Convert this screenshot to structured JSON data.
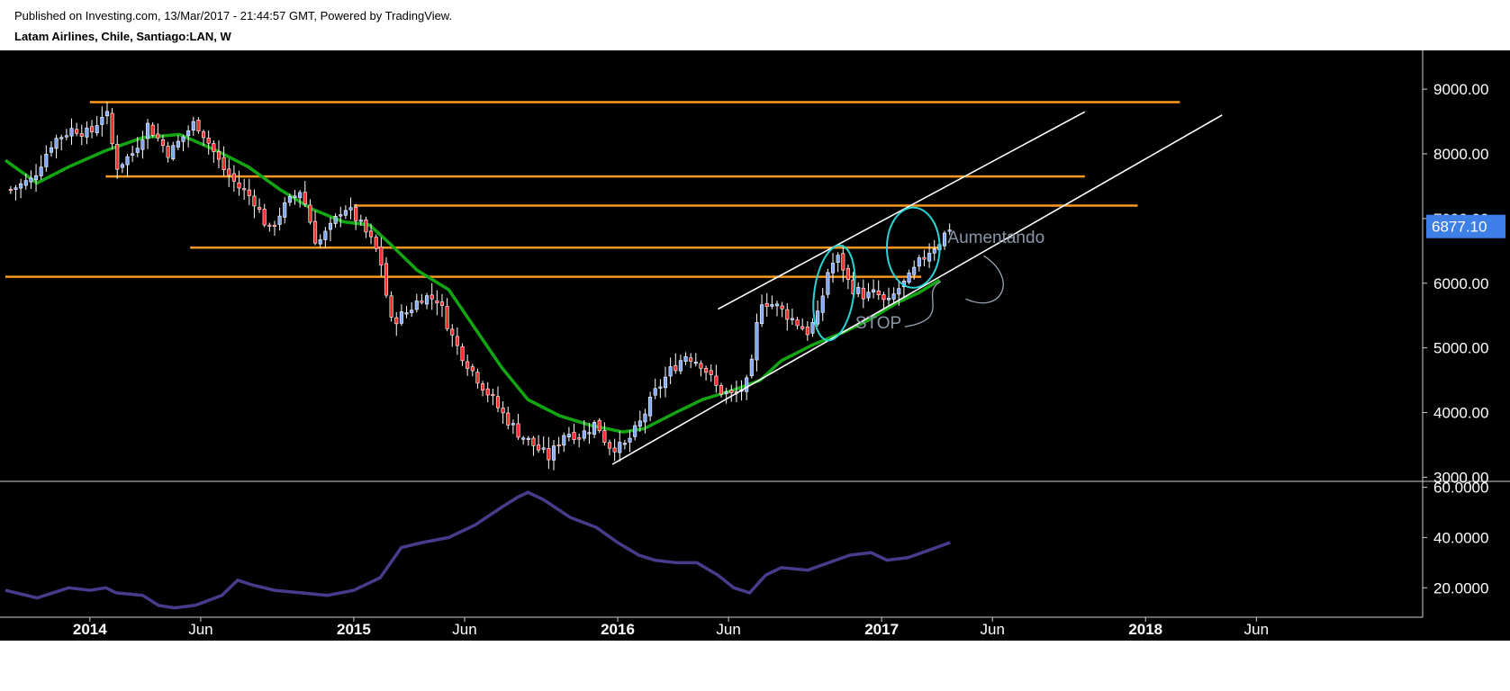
{
  "header": {
    "published": "Published on Investing.com, 13/Mar/2017 - 21:44:57 GMT, Powered by TradingView.",
    "instrument": "Latam Airlines, Chile, Santiago:LAN, W"
  },
  "colors": {
    "background": "#000000",
    "up_candle": "#7fa7ff",
    "down_candle": "#ff2a2a",
    "moving_average": "#12a612",
    "indicator": "#4a3a8c",
    "horizontal_levels": "#ff9a1e",
    "channel": "#ffffff",
    "circles": "#2ad4d4",
    "price_tag": "#3d7fe6",
    "annotation": "#8a96a8"
  },
  "chart_data": [
    {
      "type": "candlestick",
      "timeframe": "W",
      "price_scale": [
        "9000.00",
        "8000.00",
        "7000.00",
        "6000.00",
        "5000.00",
        "4000.00",
        "3000.00"
      ],
      "ylim": [
        2950,
        9600
      ],
      "last_price_label": "6877.10",
      "time_axis": [
        {
          "label": "2014",
          "t": 2014.0,
          "bold": true
        },
        {
          "label": "Jun",
          "t": 2014.42,
          "bold": false
        },
        {
          "label": "2015",
          "t": 2015.0,
          "bold": true
        },
        {
          "label": "Jun",
          "t": 2015.42,
          "bold": false
        },
        {
          "label": "2016",
          "t": 2016.0,
          "bold": true
        },
        {
          "label": "Jun",
          "t": 2016.42,
          "bold": false
        },
        {
          "label": "2017",
          "t": 2017.0,
          "bold": true
        },
        {
          "label": "Jun",
          "t": 2017.42,
          "bold": false
        },
        {
          "label": "2018",
          "t": 2018.0,
          "bold": true
        },
        {
          "label": "Jun",
          "t": 2018.42,
          "bold": false
        }
      ],
      "xlim": [
        2013.68,
        2019.05
      ],
      "close_path": [
        [
          2013.7,
          7450
        ],
        [
          2013.78,
          7600
        ],
        [
          2013.86,
          8200
        ],
        [
          2013.94,
          8400
        ],
        [
          2014.0,
          8300
        ],
        [
          2014.06,
          8700
        ],
        [
          2014.1,
          7800
        ],
        [
          2014.16,
          8000
        ],
        [
          2014.22,
          8450
        ],
        [
          2014.3,
          8000
        ],
        [
          2014.36,
          8300
        ],
        [
          2014.4,
          8500
        ],
        [
          2014.44,
          8250
        ],
        [
          2014.5,
          7800
        ],
        [
          2014.56,
          7500
        ],
        [
          2014.62,
          7300
        ],
        [
          2014.68,
          6800
        ],
        [
          2014.73,
          7150
        ],
        [
          2014.8,
          7450
        ],
        [
          2014.86,
          6600
        ],
        [
          2014.92,
          6900
        ],
        [
          2014.96,
          7200
        ],
        [
          2015.0,
          7050
        ],
        [
          2015.06,
          6700
        ],
        [
          2015.1,
          6400
        ],
        [
          2015.14,
          5400
        ],
        [
          2015.2,
          5550
        ],
        [
          2015.26,
          5800
        ],
        [
          2015.32,
          5750
        ],
        [
          2015.38,
          5100
        ],
        [
          2015.44,
          4700
        ],
        [
          2015.5,
          4350
        ],
        [
          2015.56,
          4000
        ],
        [
          2015.62,
          3700
        ],
        [
          2015.68,
          3500
        ],
        [
          2015.74,
          3300
        ],
        [
          2015.8,
          3700
        ],
        [
          2015.86,
          3650
        ],
        [
          2015.92,
          3850
        ],
        [
          2015.96,
          3500
        ],
        [
          2016.02,
          3450
        ],
        [
          2016.08,
          3800
        ],
        [
          2016.14,
          4300
        ],
        [
          2016.2,
          4650
        ],
        [
          2016.26,
          4900
        ],
        [
          2016.32,
          4750
        ],
        [
          2016.38,
          4350
        ],
        [
          2016.44,
          4250
        ],
        [
          2016.5,
          4500
        ],
        [
          2016.54,
          5750
        ],
        [
          2016.6,
          5650
        ],
        [
          2016.66,
          5450
        ],
        [
          2016.72,
          5250
        ],
        [
          2016.76,
          5500
        ],
        [
          2016.8,
          6250
        ],
        [
          2016.84,
          6400
        ],
        [
          2016.88,
          5950
        ],
        [
          2016.94,
          5800
        ],
        [
          2016.98,
          5850
        ],
        [
          2017.02,
          5650
        ],
        [
          2017.06,
          5900
        ],
        [
          2017.1,
          6050
        ],
        [
          2017.14,
          6300
        ],
        [
          2017.18,
          6500
        ],
        [
          2017.22,
          6650
        ],
        [
          2017.26,
          6877
        ]
      ],
      "moving_average": [
        [
          2013.68,
          7900
        ],
        [
          2013.8,
          7550
        ],
        [
          2013.92,
          7800
        ],
        [
          2014.06,
          8050
        ],
        [
          2014.2,
          8250
        ],
        [
          2014.34,
          8300
        ],
        [
          2014.48,
          8050
        ],
        [
          2014.6,
          7800
        ],
        [
          2014.72,
          7450
        ],
        [
          2014.84,
          7150
        ],
        [
          2014.96,
          6950
        ],
        [
          2015.06,
          6900
        ],
        [
          2015.14,
          6600
        ],
        [
          2015.24,
          6200
        ],
        [
          2015.36,
          5900
        ],
        [
          2015.46,
          5300
        ],
        [
          2015.56,
          4700
        ],
        [
          2015.66,
          4200
        ],
        [
          2015.78,
          3950
        ],
        [
          2015.9,
          3800
        ],
        [
          2016.02,
          3700
        ],
        [
          2016.1,
          3750
        ],
        [
          2016.22,
          4000
        ],
        [
          2016.32,
          4200
        ],
        [
          2016.44,
          4350
        ],
        [
          2016.54,
          4500
        ],
        [
          2016.62,
          4800
        ],
        [
          2016.74,
          5050
        ],
        [
          2016.86,
          5250
        ],
        [
          2016.96,
          5450
        ],
        [
          2017.06,
          5700
        ],
        [
          2017.14,
          5850
        ],
        [
          2017.22,
          6050
        ]
      ],
      "horizontal_levels": [
        {
          "y": 8800,
          "x0": 2014.0,
          "x1": 2018.13
        },
        {
          "y": 7650,
          "x0": 2014.06,
          "x1": 2017.77
        },
        {
          "y": 7200,
          "x0": 2015.0,
          "x1": 2017.97
        },
        {
          "y": 6550,
          "x0": 2014.38,
          "x1": 2017.22
        },
        {
          "y": 6100,
          "x0": 2013.68,
          "x1": 2017.15
        }
      ],
      "channel_lines": [
        {
          "from": [
            2016.38,
            5600
          ],
          "to": [
            2017.77,
            8650
          ]
        },
        {
          "from": [
            2015.98,
            3200
          ],
          "to": [
            2018.29,
            8600
          ]
        }
      ],
      "highlights": [
        {
          "center": [
            2016.82,
            5850
          ],
          "rx": 0.075,
          "ry": 740,
          "rotation": 8
        },
        {
          "center": [
            2017.12,
            6550
          ],
          "rx": 0.1,
          "ry": 620,
          "rotation": 0
        }
      ],
      "annotations": [
        {
          "text": "Aumentando",
          "x": 2017.25,
          "y": 6620
        },
        {
          "text": "STOP",
          "x": 2016.9,
          "y": 5300
        }
      ]
    },
    {
      "type": "line",
      "series": [
        {
          "values": [
            [
              2013.68,
              19
            ],
            [
              2013.8,
              16
            ],
            [
              2013.92,
              20
            ],
            [
              2014.0,
              19
            ],
            [
              2014.06,
              20
            ],
            [
              2014.1,
              18
            ],
            [
              2014.2,
              17
            ],
            [
              2014.26,
              13
            ],
            [
              2014.32,
              12
            ],
            [
              2014.4,
              13
            ],
            [
              2014.5,
              17
            ],
            [
              2014.56,
              23
            ],
            [
              2014.62,
              21
            ],
            [
              2014.7,
              19
            ],
            [
              2014.8,
              18
            ],
            [
              2014.9,
              17
            ],
            [
              2015.0,
              19
            ],
            [
              2015.1,
              24
            ],
            [
              2015.18,
              36
            ],
            [
              2015.26,
              38
            ],
            [
              2015.36,
              40
            ],
            [
              2015.46,
              45
            ],
            [
              2015.56,
              52
            ],
            [
              2015.62,
              56
            ],
            [
              2015.66,
              58
            ],
            [
              2015.72,
              55
            ],
            [
              2015.82,
              48
            ],
            [
              2015.92,
              44
            ],
            [
              2016.0,
              38
            ],
            [
              2016.08,
              33
            ],
            [
              2016.14,
              31
            ],
            [
              2016.22,
              30
            ],
            [
              2016.3,
              30
            ],
            [
              2016.38,
              25
            ],
            [
              2016.44,
              20
            ],
            [
              2016.5,
              18
            ],
            [
              2016.56,
              25
            ],
            [
              2016.62,
              28
            ],
            [
              2016.72,
              27
            ],
            [
              2016.8,
              30
            ],
            [
              2016.88,
              33
            ],
            [
              2016.96,
              34
            ],
            [
              2017.02,
              31
            ],
            [
              2017.1,
              32
            ],
            [
              2017.18,
              35
            ],
            [
              2017.26,
              38
            ]
          ]
        }
      ],
      "y_scale": [
        "60.0000",
        "40.0000",
        "20.0000"
      ],
      "ylim": [
        9,
        62
      ]
    }
  ]
}
